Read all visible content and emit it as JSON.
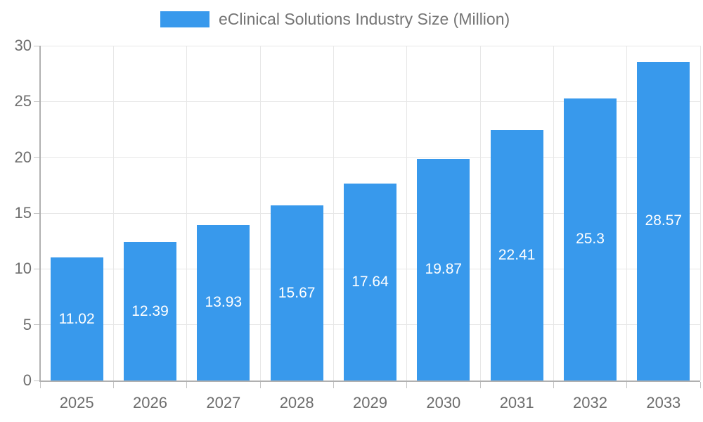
{
  "chart_data": {
    "type": "bar",
    "title": "eClinical Solutions Industry Size (Million)",
    "legend": {
      "position": "top",
      "label": "eClinical Solutions Industry Size (Million)"
    },
    "categories": [
      "2025",
      "2026",
      "2027",
      "2028",
      "2029",
      "2030",
      "2031",
      "2032",
      "2033"
    ],
    "values": [
      11.02,
      12.39,
      13.93,
      15.67,
      17.64,
      19.87,
      22.41,
      25.3,
      28.57
    ],
    "value_labels": [
      "11.02",
      "12.39",
      "13.93",
      "15.67",
      "17.64",
      "19.87",
      "22.41",
      "25.3",
      "28.57"
    ],
    "xlabel": "",
    "ylabel": "",
    "ylim": [
      0,
      30
    ],
    "y_ticks": [
      0,
      5,
      10,
      15,
      20,
      25,
      30
    ],
    "grid": true,
    "colors": {
      "bar": "#3899EC",
      "bar_value_text": "#FFFFFF",
      "axis_line": "#B0B0B0",
      "gridline": "#E7E7E7",
      "tick_mark": "#C4C4C4",
      "tick_text": "#6D6D6D",
      "legend_text": "#757575"
    }
  }
}
